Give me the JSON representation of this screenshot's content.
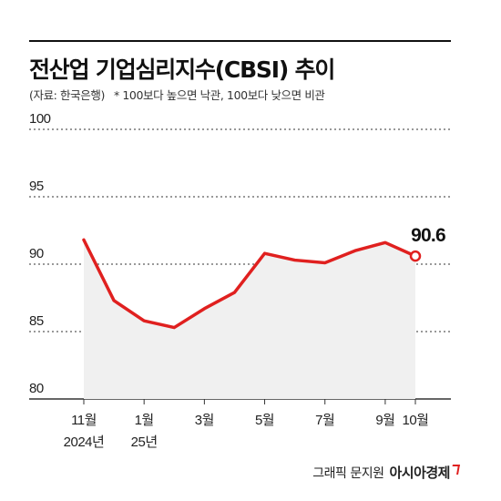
{
  "header": {
    "title": "전산업 기업심리지수(CBSI) 추이",
    "source": "(자료: 한국은행)",
    "note": "* 100보다 높으면 낙관, 100보다 낮으면 비관"
  },
  "footer": {
    "credit": "그래픽 문지원",
    "brand": "아시아경제"
  },
  "colors": {
    "line": "#e0201f",
    "area": "#f0f0f0",
    "grid": "#333333",
    "text": "#111111"
  },
  "chart_data": {
    "type": "area",
    "title": "전산업 기업심리지수(CBSI) 추이",
    "xlabel": "",
    "ylabel": "",
    "ylim": [
      80,
      100
    ],
    "yticks": [
      100,
      95,
      90,
      85,
      80
    ],
    "grid": true,
    "x_tick_labels": [
      {
        "index": 0,
        "lines": [
          "11월",
          "2024년"
        ]
      },
      {
        "index": 2,
        "lines": [
          "1월",
          "25년"
        ]
      },
      {
        "index": 4,
        "lines": [
          "3월"
        ]
      },
      {
        "index": 6,
        "lines": [
          "5월"
        ]
      },
      {
        "index": 8,
        "lines": [
          "7월"
        ]
      },
      {
        "index": 10,
        "lines": [
          "9월"
        ]
      },
      {
        "index": 11,
        "lines": [
          "10월"
        ]
      }
    ],
    "series": [
      {
        "values": [
          91.8,
          87.3,
          85.8,
          85.3,
          86.7,
          87.9,
          90.8,
          90.3,
          90.1,
          91.0,
          91.6,
          90.6
        ]
      }
    ],
    "annotations": [
      {
        "index": 11,
        "text": "90.6"
      }
    ]
  }
}
